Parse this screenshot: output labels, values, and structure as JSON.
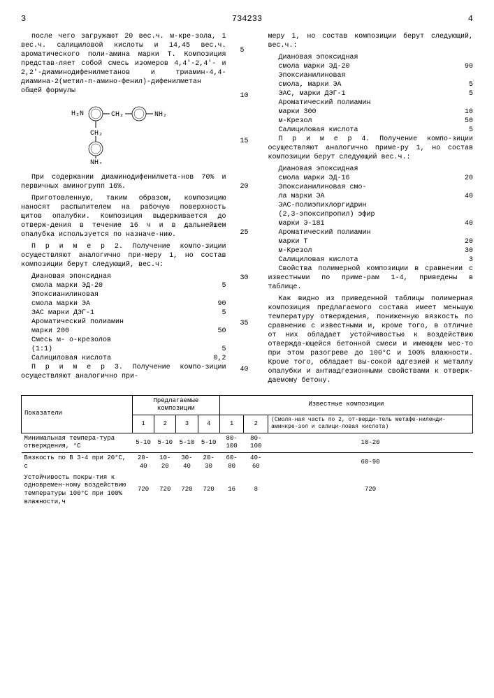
{
  "header": {
    "page_left": "3",
    "doc_num": "734233",
    "page_right": "4"
  },
  "left_col": {
    "para1": "после чего загружают 20 вес.ч. м-кре-зола, 1 вес.ч. салициловой кислоты и 14,45 вес.ч. ароматического поли-амина марки Т. Композиция представ-ляет собой смесь изомеров 4,4'-2,4'- и 2,2'-диаминодифенилметанов и триамин-4,4-диамина-2(метил-п-амино-фенил)-дифенилметан общей формулы",
    "formula_parts": [
      "H₂N",
      "CH₂",
      "NH₂",
      "CH₂",
      "NH₂"
    ],
    "para2": "При содержании диаминодифенилмета-нов 70% и первичных аминогрупп 16%.",
    "para3": "Приготовленную, таким образом, композицию наносят распылителем на рабочую поверхность щитов опалубки. Композиция выдерживается до отверж-дения в течение 16 ч и в дальнейшем опалубка используется по назначе-нию.",
    "para4": "П р и м е р 2. Получение компо-зиции осуществляют аналогично при-меру 1, но состав композиции берут следующий, вес.ч:",
    "comp2": [
      {
        "l": "Диановая эпоксидная",
        "v": ""
      },
      {
        "l": "смола марки ЭД-20",
        "v": "5"
      },
      {
        "l": "Эпоксианилиновая",
        "v": ""
      },
      {
        "l": "смола марки ЭА",
        "v": "90"
      },
      {
        "l": "ЭАС марки ДЭГ-1",
        "v": "5"
      },
      {
        "l": "Ароматический полиамин",
        "v": ""
      },
      {
        "l": "марки 200",
        "v": "50"
      },
      {
        "l": "Смесь м- о-крезолов",
        "v": ""
      },
      {
        "l": "(1:1)",
        "v": "5"
      },
      {
        "l": "Салициловая кислота",
        "v": "0,2"
      }
    ],
    "para5": "П р и м е р 3. Получение компо-зиции осуществляют аналогично при-"
  },
  "line_numbers": [
    "5",
    "10",
    "15",
    "20",
    "25",
    "30",
    "35",
    "40"
  ],
  "right_col": {
    "para1": "меру 1, но состав композиции берут следующий, вес.ч.:",
    "comp3": [
      {
        "l": "Диановая эпоксидная",
        "v": ""
      },
      {
        "l": "смола марки ЭД-20",
        "v": "90"
      },
      {
        "l": "Эпоксианилиновая",
        "v": ""
      },
      {
        "l": "смола, марки ЭА",
        "v": "5"
      },
      {
        "l": "ЭАС, марки ДЭГ-1",
        "v": "5"
      },
      {
        "l": "Ароматический полиамин",
        "v": ""
      },
      {
        "l": "марки 300",
        "v": "10"
      },
      {
        "l": "м-Крезол",
        "v": "50"
      },
      {
        "l": "Салициловая кислота",
        "v": "5"
      }
    ],
    "para2": "П р и м е р 4. Получение компо-зиции осуществляют аналогично приме-ру 1, но состав композиции берут следующий вес.ч.:",
    "comp4": [
      {
        "l": "Диановая эпоксидная",
        "v": ""
      },
      {
        "l": "смола марки ЭД-16",
        "v": "20"
      },
      {
        "l": "Эпоксианилиновая смо-",
        "v": ""
      },
      {
        "l": "ла марки ЭА",
        "v": "40"
      },
      {
        "l": "ЭАС-полиэпихлоргидрин",
        "v": ""
      },
      {
        "l": "(2,3-эпоксипропил) эфир",
        "v": ""
      },
      {
        "l": "марки Э-181",
        "v": "40"
      },
      {
        "l": "Ароматический полиамин",
        "v": ""
      },
      {
        "l": "марки Т",
        "v": "20"
      },
      {
        "l": "м-Крезол",
        "v": "30"
      },
      {
        "l": "Салициловая кислота",
        "v": "3"
      }
    ],
    "para3": "Свойства полимерной композиции в сравнении с известными по приме-рам 1-4, приведены в таблице.",
    "para4": "Как видно из приведенной таблицы полимерная композиция предлагаемого состава имеет меньшую температуру отверждения, пониженную вязкость по сравнению с известными и, кроме того, в отличие от них обладает устойчивостью к воздействию отвержда-ющейся бетонной смеси и имеющем мес-то при этом разогреве до 100°С и 100% влажности. Кроме того, обладает вы-сокой адгезией к металлу опалубки и антиадгезионными свойствами к отверж-даемому бетону."
  },
  "table": {
    "header_group1": "Предлагаемые композиции",
    "header_group2": "Известные композиции",
    "col_label": "Показатели",
    "cols": [
      "1",
      "2",
      "3",
      "4",
      "1",
      "2"
    ],
    "note": "(Смоля-ная часть по 2, от-верди-тель метафе-ниленди-аминкре-зол и салици-ловая кислота)",
    "rows": [
      {
        "label": "Минимальная темпера-тура отверждения, °С",
        "v": [
          "5-10",
          "5-10",
          "5-10",
          "5-10",
          "80-100",
          "80-100",
          "10-20"
        ]
      },
      {
        "label": "Вязкость по В 3-4 при 20°С, с",
        "v": [
          "20-40",
          "10-20",
          "30-40",
          "20-30",
          "60-80",
          "40-60",
          "60-90"
        ]
      },
      {
        "label": "Устойчивость покры-тия к одновремен-ному воздействию температуры 100°С при 100% влажности,ч",
        "v": [
          "720",
          "720",
          "720",
          "720",
          "16",
          "8",
          "720"
        ]
      }
    ]
  }
}
